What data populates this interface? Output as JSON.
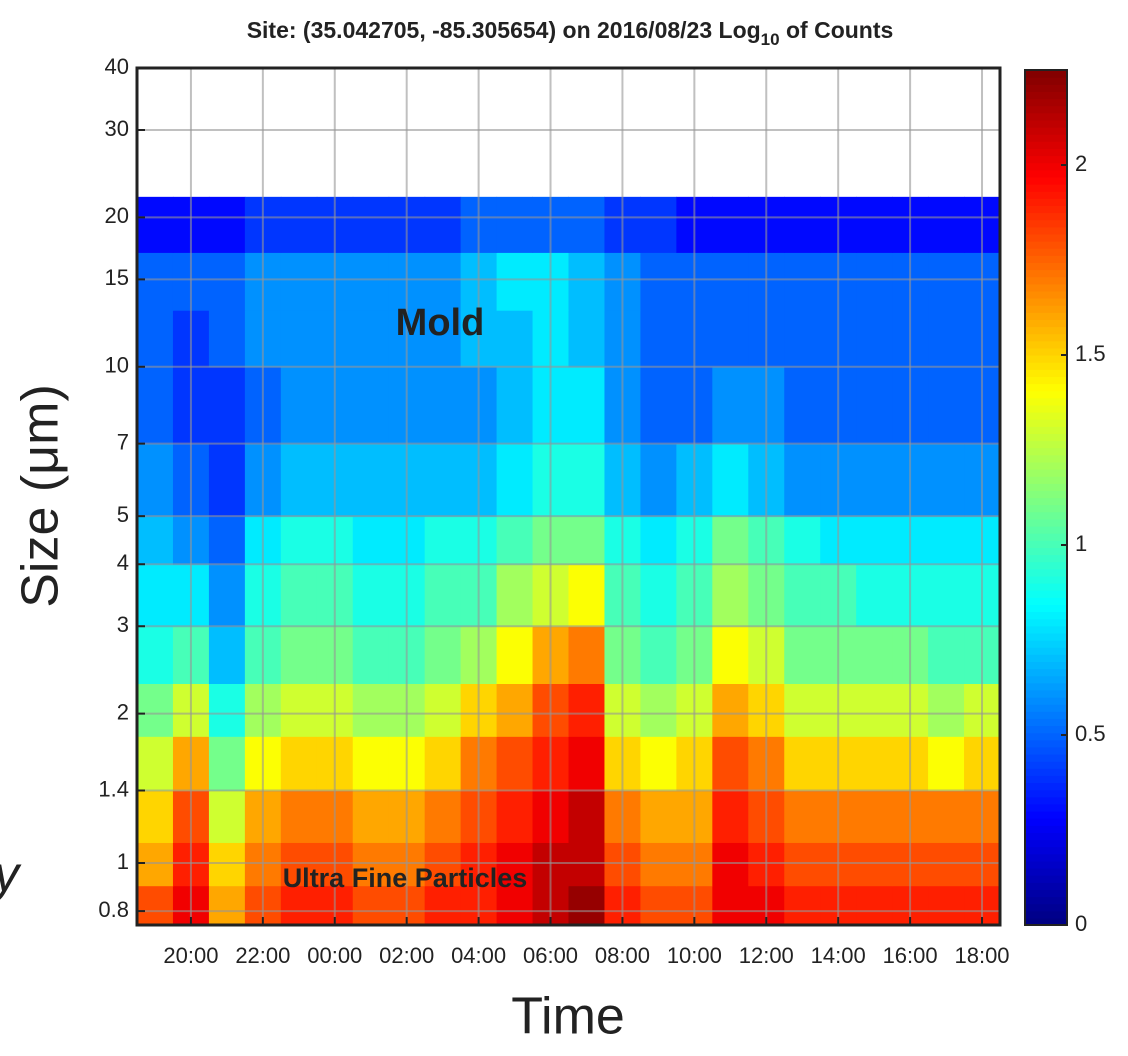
{
  "chart_data": {
    "type": "heatmap",
    "title": "Site: (35.042705, -85.305654) on 2016/08/23 Log",
    "title_subscript": "10",
    "title_suffix": " of Counts",
    "x_label": "Time",
    "y_label": "Size (μm)",
    "categories": [
      null,
      "20:00",
      null,
      "22:00",
      null,
      "00:00",
      null,
      "02:00",
      null,
      "04:00",
      null,
      "06:00",
      null,
      "08:00",
      null,
      "10:00",
      null,
      "12:00",
      null,
      "14:00",
      null,
      "16:00",
      null,
      "18:00"
    ],
    "y_bins": [
      0.75,
      0.9,
      1.1,
      1.4,
      1.8,
      2.3,
      3,
      4,
      5,
      7,
      10,
      13,
      17,
      22
    ],
    "y_scale": "log",
    "ylim": [
      0.75,
      40
    ],
    "yticks": [
      0.8,
      1,
      1.4,
      2,
      3,
      4,
      5,
      7,
      10,
      15,
      20,
      30,
      40
    ],
    "grid": true,
    "colormap": "jet",
    "clim": [
      0,
      2.25
    ],
    "cticks": [
      0,
      0.5,
      1,
      1.5,
      2
    ],
    "values": [
      [
        1.8,
        2.0,
        1.6,
        1.8,
        1.9,
        1.9,
        1.8,
        1.8,
        1.9,
        1.9,
        2.0,
        2.1,
        2.2,
        1.9,
        1.8,
        1.8,
        2.0,
        2.0,
        1.9,
        1.9,
        1.9,
        1.9,
        1.9,
        1.9
      ],
      [
        1.6,
        1.9,
        1.5,
        1.7,
        1.8,
        1.8,
        1.7,
        1.7,
        1.8,
        1.9,
        2.0,
        2.1,
        2.1,
        1.8,
        1.7,
        1.7,
        2.0,
        1.9,
        1.8,
        1.8,
        1.8,
        1.8,
        1.8,
        1.8
      ],
      [
        1.5,
        1.8,
        1.3,
        1.6,
        1.7,
        1.7,
        1.6,
        1.6,
        1.7,
        1.8,
        1.9,
        2.0,
        2.1,
        1.7,
        1.6,
        1.6,
        1.9,
        1.8,
        1.7,
        1.7,
        1.7,
        1.7,
        1.7,
        1.7
      ],
      [
        1.3,
        1.6,
        1.1,
        1.4,
        1.5,
        1.5,
        1.4,
        1.4,
        1.5,
        1.7,
        1.8,
        1.9,
        2.0,
        1.5,
        1.4,
        1.5,
        1.8,
        1.7,
        1.5,
        1.5,
        1.5,
        1.5,
        1.4,
        1.5
      ],
      [
        1.1,
        1.3,
        0.9,
        1.2,
        1.3,
        1.3,
        1.2,
        1.2,
        1.3,
        1.5,
        1.6,
        1.8,
        1.9,
        1.3,
        1.2,
        1.3,
        1.6,
        1.5,
        1.3,
        1.3,
        1.3,
        1.3,
        1.2,
        1.3
      ],
      [
        0.9,
        1.0,
        0.7,
        1.0,
        1.1,
        1.1,
        1.0,
        1.0,
        1.1,
        1.2,
        1.4,
        1.6,
        1.7,
        1.1,
        1.0,
        1.1,
        1.4,
        1.3,
        1.1,
        1.1,
        1.1,
        1.1,
        1.0,
        1.0
      ],
      [
        0.8,
        0.8,
        0.6,
        0.9,
        1.0,
        1.0,
        0.9,
        0.9,
        1.0,
        1.0,
        1.2,
        1.3,
        1.4,
        1.0,
        0.9,
        1.0,
        1.2,
        1.1,
        1.0,
        1.0,
        0.9,
        0.9,
        0.9,
        0.9
      ],
      [
        0.7,
        0.6,
        0.5,
        0.8,
        0.9,
        0.9,
        0.8,
        0.8,
        0.9,
        0.9,
        1.0,
        1.1,
        1.1,
        0.9,
        0.8,
        0.9,
        1.1,
        1.0,
        0.9,
        0.8,
        0.8,
        0.8,
        0.8,
        0.8
      ],
      [
        0.6,
        0.5,
        0.4,
        0.6,
        0.7,
        0.7,
        0.7,
        0.7,
        0.7,
        0.7,
        0.8,
        0.9,
        0.9,
        0.7,
        0.6,
        0.7,
        0.8,
        0.7,
        0.6,
        0.6,
        0.6,
        0.6,
        0.6,
        0.6
      ],
      [
        0.5,
        0.4,
        0.4,
        0.5,
        0.6,
        0.6,
        0.6,
        0.6,
        0.6,
        0.6,
        0.7,
        0.8,
        0.8,
        0.6,
        0.5,
        0.5,
        0.6,
        0.6,
        0.5,
        0.5,
        0.5,
        0.5,
        0.5,
        0.5
      ],
      [
        0.5,
        0.4,
        0.5,
        0.6,
        0.6,
        0.6,
        0.6,
        0.6,
        0.6,
        0.7,
        0.7,
        0.8,
        0.7,
        0.6,
        0.5,
        0.5,
        0.5,
        0.5,
        0.5,
        0.5,
        0.5,
        0.5,
        0.5,
        0.5
      ],
      [
        0.5,
        0.5,
        0.5,
        0.6,
        0.6,
        0.6,
        0.6,
        0.6,
        0.6,
        0.7,
        0.8,
        0.8,
        0.7,
        0.6,
        0.5,
        0.5,
        0.5,
        0.5,
        0.5,
        0.5,
        0.5,
        0.5,
        0.5,
        0.5
      ],
      [
        0.3,
        0.3,
        0.3,
        0.4,
        0.4,
        0.4,
        0.4,
        0.4,
        0.4,
        0.5,
        0.5,
        0.5,
        0.5,
        0.4,
        0.4,
        0.3,
        0.3,
        0.3,
        0.3,
        0.3,
        0.3,
        0.3,
        0.3,
        0.3
      ]
    ],
    "annotations": [
      "Mold",
      "Ultra Fine Particles"
    ],
    "edge_fragment": "y"
  }
}
